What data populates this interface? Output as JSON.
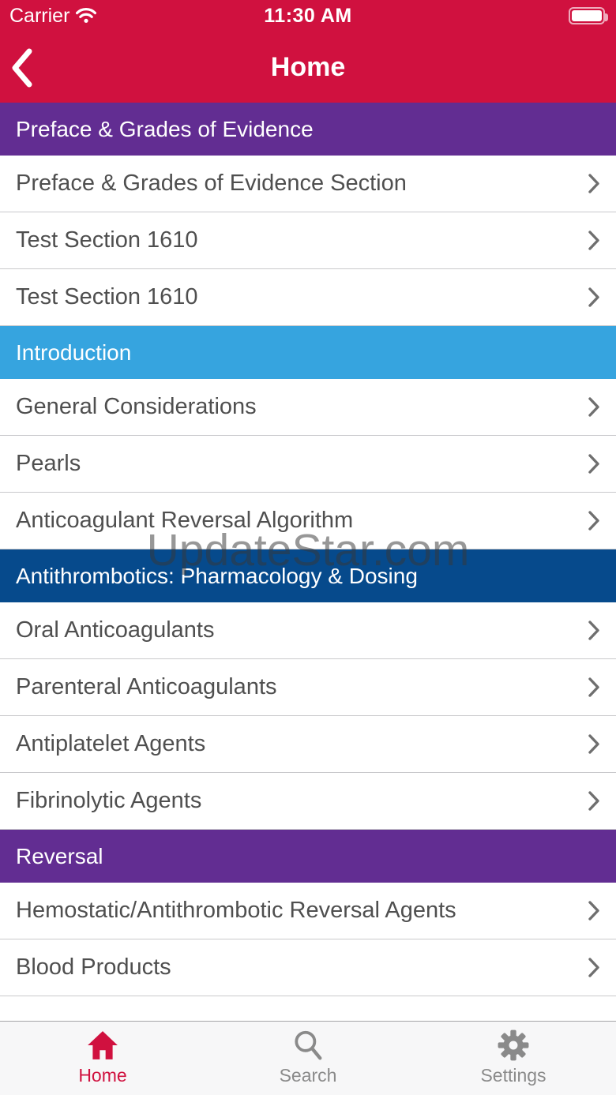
{
  "status_bar": {
    "carrier": "Carrier",
    "time": "11:30 AM",
    "battery_percent": 100
  },
  "nav": {
    "title": "Home",
    "back_icon": "chevron-left-icon"
  },
  "colors": {
    "nav_red": "#D0113F",
    "purple": "#622D92",
    "light_blue": "#36A4DF",
    "dark_blue": "#064A8C",
    "row_text": "#4F4F4F",
    "inactive_gray": "#8A8A8A"
  },
  "sections": [
    {
      "title": "Preface & Grades of Evidence",
      "color": "#622D92",
      "items": [
        "Preface & Grades of Evidence Section",
        "Test Section 1610",
        "Test Section 1610"
      ]
    },
    {
      "title": "Introduction",
      "color": "#36A4DF",
      "items": [
        "General Considerations",
        "Pearls",
        "Anticoagulant Reversal Algorithm"
      ]
    },
    {
      "title": "Antithrombotics: Pharmacology & Dosing",
      "color": "#064A8C",
      "items": [
        "Oral Anticoagulants",
        "Parenteral Anticoagulants",
        "Antiplatelet Agents",
        "Fibrinolytic Agents"
      ]
    },
    {
      "title": "Reversal",
      "color": "#622D92",
      "items": [
        "Hemostatic/Antithrombotic Reversal Agents",
        "Blood Products"
      ]
    }
  ],
  "watermark": "UpdateStar.com",
  "tab_bar": {
    "tabs": [
      {
        "label": "Home",
        "icon": "home-icon",
        "active": true
      },
      {
        "label": "Search",
        "icon": "search-icon",
        "active": false
      },
      {
        "label": "Settings",
        "icon": "settings-icon",
        "active": false
      }
    ]
  }
}
